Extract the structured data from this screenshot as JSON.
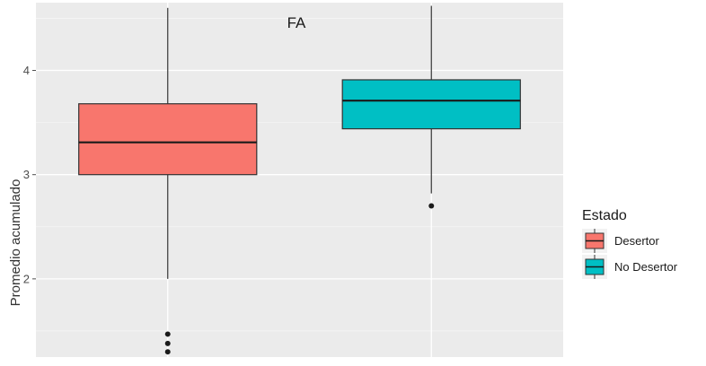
{
  "chart_data": {
    "type": "boxplot",
    "title": "FA",
    "xlabel": "",
    "ylabel": "Promedio acumulado",
    "ylim": [
      1.25,
      4.65
    ],
    "yticks": [
      2,
      3,
      4
    ],
    "grid": true,
    "legend": {
      "title": "Estado",
      "position": "right",
      "entries": [
        "Desertor",
        "No Desertor"
      ]
    },
    "series": [
      {
        "name": "Desertor",
        "color": "#F8766D",
        "min": 2.0,
        "q1": 3.0,
        "median": 3.31,
        "q3": 3.68,
        "max": 4.6,
        "outliers": [
          1.47,
          1.38,
          1.3
        ]
      },
      {
        "name": "No Desertor",
        "color": "#00BFC4",
        "min": 2.82,
        "q1": 3.44,
        "median": 3.71,
        "q3": 3.91,
        "max": 4.62,
        "outliers": [
          2.7
        ]
      }
    ]
  }
}
